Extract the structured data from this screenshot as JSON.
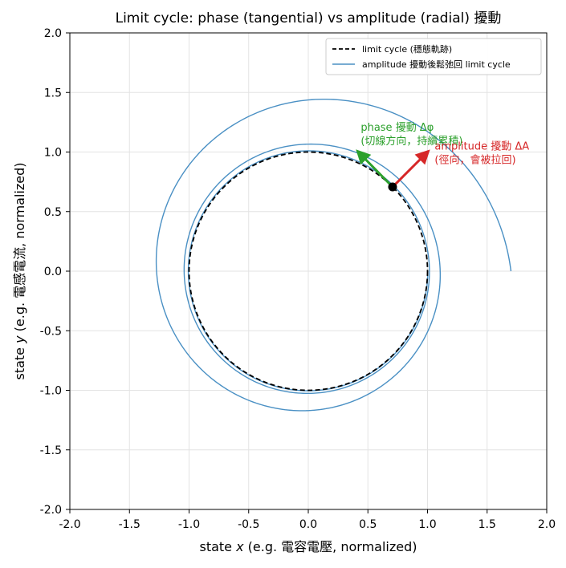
{
  "chart_data": {
    "type": "line",
    "title": "Limit cycle: phase (tangential) vs amplitude (radial) 擾動",
    "xlabel_prefix": "state ",
    "xlabel_var": "x",
    "xlabel_suffix": " (e.g. 電容電壓, normalized)",
    "ylabel_prefix": "state ",
    "ylabel_var": "y",
    "ylabel_suffix": " (e.g. 電感電流, normalized)",
    "xlim": [
      -2.0,
      2.0
    ],
    "ylim": [
      -2.0,
      2.0
    ],
    "xticks": [
      -2.0,
      -1.5,
      -1.0,
      -0.5,
      0.0,
      0.5,
      1.0,
      1.5,
      2.0
    ],
    "yticks": [
      -2.0,
      -1.5,
      -1.0,
      -0.5,
      0.0,
      0.5,
      1.0,
      1.5,
      2.0
    ],
    "xtick_labels": [
      "-2.0",
      "-1.5",
      "-1.0",
      "-0.5",
      "0.0",
      "0.5",
      "1.0",
      "1.5",
      "2.0"
    ],
    "ytick_labels": [
      "-2.0",
      "-1.5",
      "-1.0",
      "-0.5",
      "0.0",
      "0.5",
      "1.0",
      "1.5",
      "2.0"
    ],
    "grid": true,
    "legend_position": "top-right",
    "series": [
      {
        "name": "limit cycle (穩態軌跡)",
        "color": "#000000",
        "style": "dashed",
        "shape": "circle",
        "radius": 1.0
      },
      {
        "name": "amplitude 擾動後鬆弛回 limit cycle",
        "color": "#4a90c4",
        "style": "solid",
        "shape": "spiral",
        "start_point": [
          1.7,
          0.0
        ],
        "start_radius": 1.7,
        "final_radius": 1.0,
        "approx_turns": 3,
        "sample_points": [
          [
            1.7,
            0.0
          ],
          [
            0.14,
            1.4
          ],
          [
            -1.25,
            0.05
          ],
          [
            0.0,
            -1.17
          ],
          [
            1.1,
            0.0
          ],
          [
            0.0,
            1.1
          ],
          [
            -1.05,
            0.0
          ],
          [
            0.0,
            -1.05
          ],
          [
            1.02,
            0.0
          ]
        ]
      }
    ],
    "point": {
      "x": 0.707,
      "y": 0.707,
      "color": "#000000"
    },
    "annotations": [
      {
        "id": "phase",
        "color": "#2ca02c",
        "line1": "phase 擾動 Δφ",
        "line2": "(切線方向，持續累積)",
        "arrow_from": [
          0.707,
          0.707
        ],
        "arrow_to": [
          0.42,
          1.0
        ],
        "text_at": [
          0.44,
          1.18
        ]
      },
      {
        "id": "amplitude",
        "color": "#d62728",
        "line1": "amplitude 擾動 ΔA",
        "line2": "(徑向，會被拉回)",
        "arrow_from": [
          0.707,
          0.707
        ],
        "arrow_to": [
          1.0,
          1.0
        ],
        "text_at": [
          1.06,
          1.02
        ]
      }
    ]
  }
}
